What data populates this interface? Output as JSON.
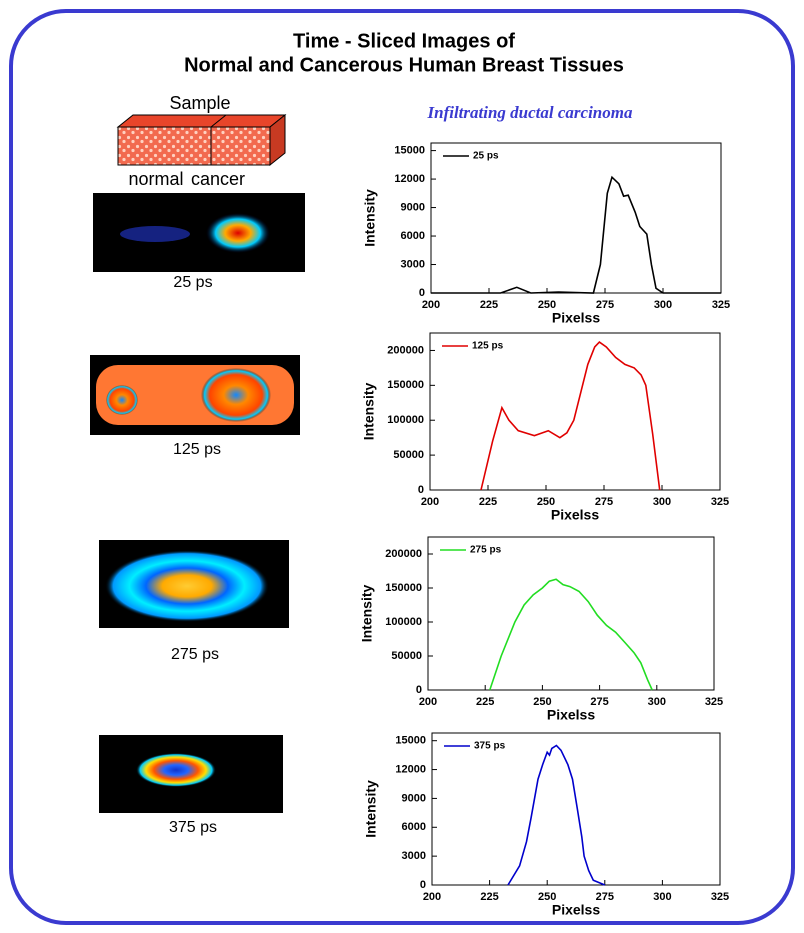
{
  "title_lines": [
    "Time - Sliced Images of",
    "Normal and Cancerous Human Breast Tissues"
  ],
  "sample_label": "Sample",
  "sample_parts": [
    "normal",
    "cancer"
  ],
  "subtitle": "Infiltrating ductal carcinoma",
  "image_labels": [
    "25 ps",
    "125 ps",
    "275 ps",
    "375 ps"
  ],
  "chart_data": [
    {
      "type": "line",
      "x_label": "Pixelss",
      "y_label": "Intensity",
      "xlim": [
        200,
        325
      ],
      "ylim": [
        0,
        15800
      ],
      "xticks": [
        200,
        225,
        250,
        275,
        300,
        325
      ],
      "yticks": [
        0,
        3000,
        6000,
        9000,
        12000,
        15000
      ],
      "legend": "upper left",
      "x": [
        200,
        230,
        237,
        243,
        255,
        270,
        273,
        276,
        278,
        281,
        283,
        285,
        288,
        290,
        293,
        295,
        297,
        300,
        325
      ],
      "series": [
        {
          "name": "25 ps",
          "color": "#000000",
          "values": [
            0,
            0,
            600,
            0,
            100,
            0,
            3000,
            10500,
            12200,
            11500,
            10200,
            10300,
            8500,
            7000,
            6200,
            3000,
            500,
            0,
            0
          ]
        }
      ]
    },
    {
      "type": "line",
      "x_label": "Pixelss",
      "y_label": "Intensity",
      "xlim": [
        200,
        325
      ],
      "ylim": [
        0,
        225000
      ],
      "xticks": [
        200,
        225,
        250,
        275,
        300,
        325
      ],
      "yticks": [
        0,
        50000,
        100000,
        150000,
        200000
      ],
      "legend": "upper left",
      "x": [
        222,
        227,
        231,
        234,
        238,
        245,
        251,
        256,
        259,
        262,
        265,
        268,
        271,
        273,
        276,
        280,
        284,
        288,
        291,
        293,
        296,
        299
      ],
      "series": [
        {
          "name": "125 ps",
          "color": "#e00000",
          "values": [
            0,
            70000,
            118000,
            100000,
            85000,
            78000,
            85000,
            75000,
            82000,
            100000,
            140000,
            180000,
            205000,
            212000,
            205000,
            190000,
            180000,
            175000,
            165000,
            150000,
            80000,
            0
          ]
        }
      ]
    },
    {
      "type": "line",
      "x_label": "Pixelss",
      "y_label": "Intensity",
      "xlim": [
        200,
        325
      ],
      "ylim": [
        0,
        225000
      ],
      "xticks": [
        200,
        225,
        250,
        275,
        300,
        325
      ],
      "yticks": [
        0,
        50000,
        100000,
        150000,
        200000
      ],
      "legend": "upper left",
      "x": [
        227,
        232,
        238,
        242,
        246,
        250,
        253,
        256,
        259,
        262,
        266,
        270,
        274,
        278,
        282,
        286,
        290,
        293,
        296,
        298
      ],
      "series": [
        {
          "name": "275 ps",
          "color": "#22dd22",
          "values": [
            0,
            50000,
            100000,
            125000,
            140000,
            150000,
            160000,
            163000,
            155000,
            152000,
            145000,
            130000,
            110000,
            95000,
            85000,
            70000,
            55000,
            40000,
            15000,
            0
          ]
        }
      ]
    },
    {
      "type": "line",
      "x_label": "Pixelss",
      "y_label": "Intensity",
      "xlim": [
        200,
        325
      ],
      "ylim": [
        0,
        15800
      ],
      "xticks": [
        200,
        225,
        250,
        275,
        300,
        325
      ],
      "yticks": [
        0,
        3000,
        6000,
        9000,
        12000,
        15000
      ],
      "legend": "upper left",
      "x": [
        233,
        238,
        241,
        243,
        246,
        248,
        250,
        251,
        252,
        254,
        256,
        258,
        259,
        261,
        263,
        265,
        266,
        268,
        270,
        275
      ],
      "series": [
        {
          "name": "375 ps",
          "color": "#0000cc",
          "values": [
            0,
            2000,
            4500,
            7000,
            11000,
            12500,
            13800,
            13500,
            14200,
            14500,
            14000,
            13000,
            12500,
            11000,
            8000,
            5000,
            3000,
            1500,
            500,
            0
          ]
        }
      ]
    }
  ]
}
